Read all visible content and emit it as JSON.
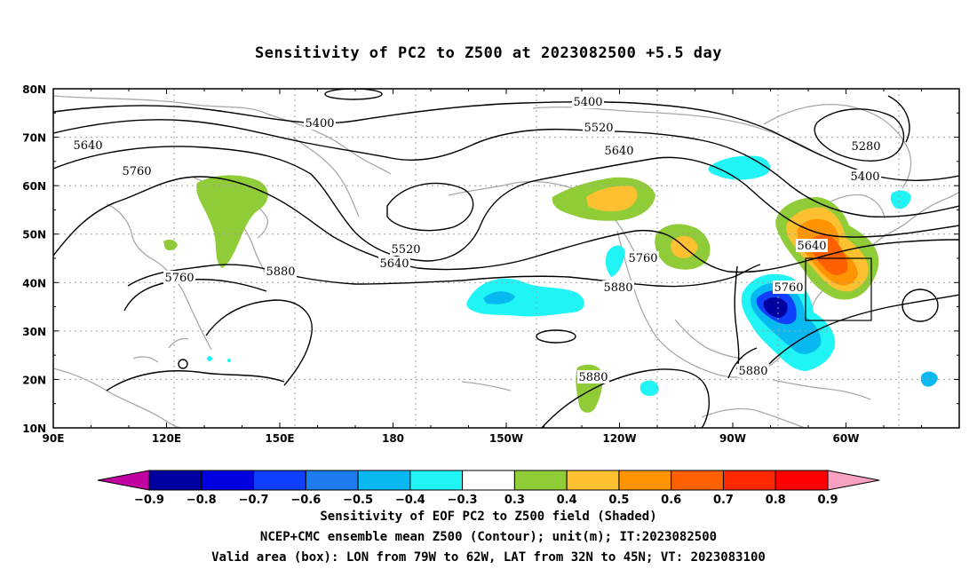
{
  "title": "Sensitivity of PC2 to Z500 at 2023082500 +5.5 day",
  "lat_labels": [
    "80N",
    "70N",
    "60N",
    "50N",
    "40N",
    "30N",
    "20N",
    "10N"
  ],
  "lon_labels": [
    "90E",
    "120E",
    "150E",
    "180",
    "150W",
    "120W",
    "90W",
    "60W"
  ],
  "contour_labels": [
    {
      "text": "5400"
    },
    {
      "text": "5400"
    },
    {
      "text": "5520"
    },
    {
      "text": "5640"
    },
    {
      "text": "5640"
    },
    {
      "text": "5760"
    },
    {
      "text": "5520"
    },
    {
      "text": "5640"
    },
    {
      "text": "5760"
    },
    {
      "text": "5880"
    },
    {
      "text": "5760"
    },
    {
      "text": "5880"
    },
    {
      "text": "5640"
    },
    {
      "text": "5760"
    },
    {
      "text": "5280"
    },
    {
      "text": "5400"
    },
    {
      "text": "5880"
    },
    {
      "text": "5880"
    }
  ],
  "colorbar": {
    "labels": [
      "-0.9",
      "-0.8",
      "-0.7",
      "-0.6",
      "-0.5",
      "-0.4",
      "-0.3",
      "0.3",
      "0.4",
      "0.5",
      "0.6",
      "0.7",
      "0.8",
      "0.9"
    ],
    "colors": [
      "#c000a0",
      "#0000a0",
      "#0000e0",
      "#1040ff",
      "#1c7cf0",
      "#08b8f0",
      "#20f4f4",
      "#ffffff",
      "#90cc38",
      "#fcc030",
      "#ff9400",
      "#ff6000",
      "#ff2800",
      "#ff0000",
      "#f8a0c0"
    ]
  },
  "captions": [
    "Sensitivity of EOF PC2 to Z500 field (Shaded)",
    "NCEP+CMC ensemble mean Z500 (Contour); unit(m); IT:2023082500",
    "Valid area (box): LON from 79W to 62W, LAT from 32N to 45N; VT: 2023083100"
  ]
}
